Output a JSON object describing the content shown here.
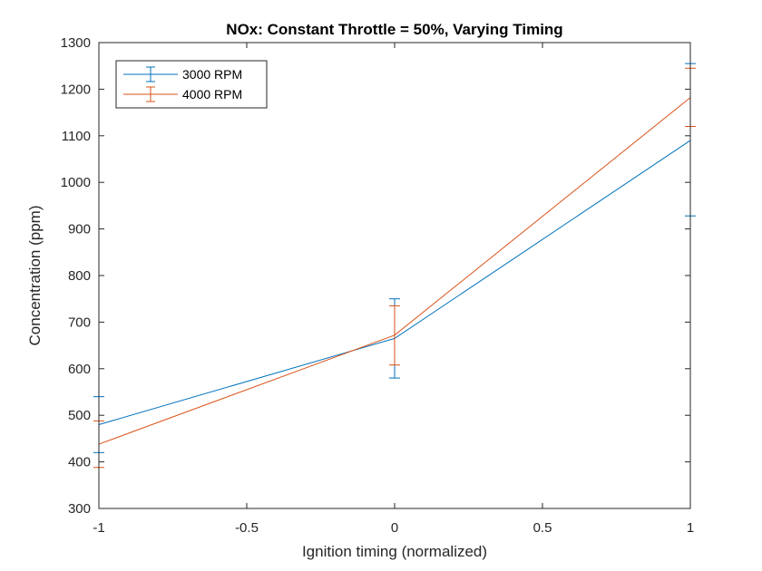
{
  "chart_data": {
    "type": "line",
    "title": "NOx: Constant Throttle = 50%, Varying Timing",
    "xlabel": "Ignition timing (normalized)",
    "ylabel": "Concentration (ppm)",
    "xlim": [
      -1,
      1
    ],
    "ylim": [
      300,
      1300
    ],
    "xticks": [
      -1,
      -0.5,
      0,
      0.5,
      1
    ],
    "xtick_labels": [
      "-1",
      "-0.5",
      "0",
      "0.5",
      "1"
    ],
    "yticks": [
      300,
      400,
      500,
      600,
      700,
      800,
      900,
      1000,
      1100,
      1200,
      1300
    ],
    "ytick_labels": [
      "300",
      "400",
      "500",
      "600",
      "700",
      "800",
      "900",
      "1000",
      "1100",
      "1200",
      "1300"
    ],
    "grid": false,
    "legend_position": "top-left",
    "x": [
      -1,
      0,
      1
    ],
    "series": [
      {
        "name": "3000 RPM",
        "color": "#0072BD",
        "values": [
          480,
          665,
          1090
        ],
        "err_low": [
          420,
          580,
          928
        ],
        "err_high": [
          540,
          750,
          1255
        ]
      },
      {
        "name": "4000 RPM",
        "color": "#D95319",
        "values": [
          438,
          672,
          1182
        ],
        "err_low": [
          388,
          608,
          1120
        ],
        "err_high": [
          488,
          735,
          1245
        ]
      }
    ]
  }
}
